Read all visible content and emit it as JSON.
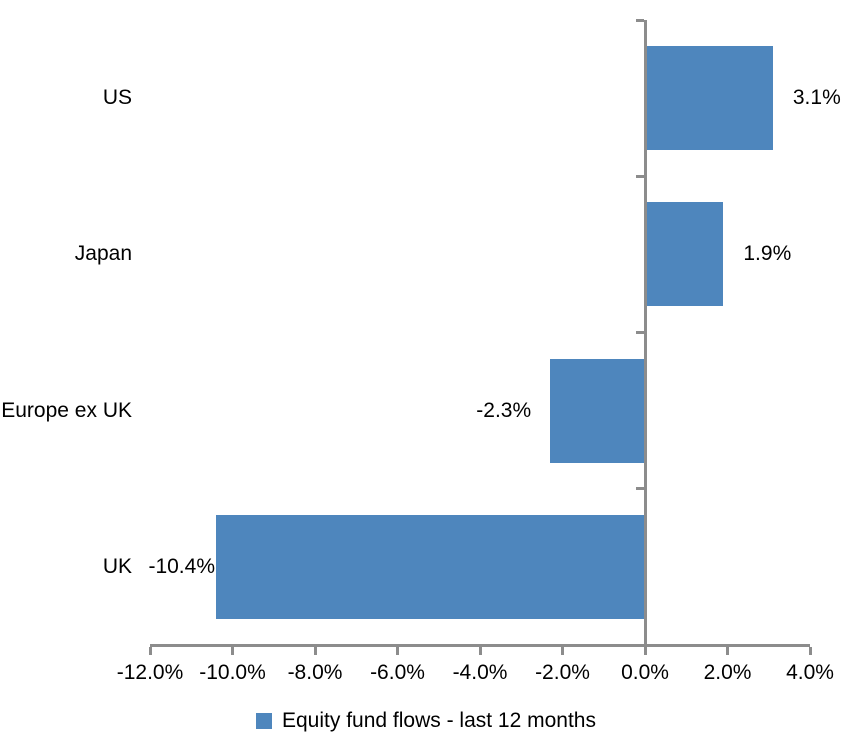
{
  "chart_data": {
    "type": "bar",
    "orientation": "horizontal",
    "title": "",
    "categories": [
      "US",
      "Japan",
      "Europe ex UK",
      "UK"
    ],
    "series": [
      {
        "name": "Equity fund flows - last 12 months",
        "values": [
          3.1,
          1.9,
          -2.3,
          -10.4
        ],
        "data_labels": [
          "3.1%",
          "1.9%",
          "-2.3%",
          "-10.4%"
        ],
        "color": "#4E86BD"
      }
    ],
    "x_axis": {
      "min": -12,
      "max": 4,
      "tick_step": 2,
      "tick_labels": [
        "-12.0%",
        "-10.0%",
        "-8.0%",
        "-6.0%",
        "-4.0%",
        "-2.0%",
        "0.0%",
        "2.0%",
        "4.0%"
      ]
    },
    "y_axis": {
      "zero_line": true
    },
    "grid": false,
    "legend_position": "bottom",
    "colors": {
      "bar": "#4E86BD",
      "axis": "#8C8C8C",
      "text": "#000000",
      "background": "#FFFFFF"
    }
  }
}
